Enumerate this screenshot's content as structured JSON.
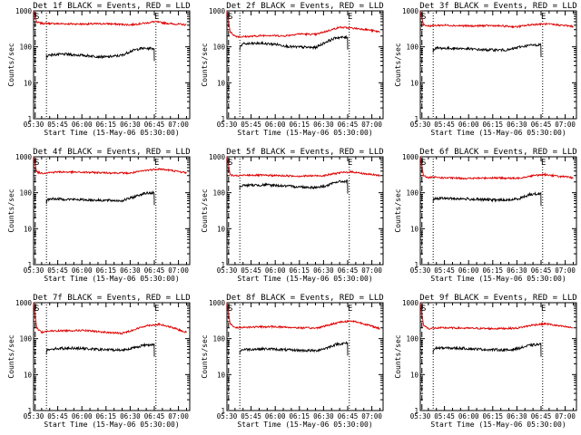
{
  "chart_data": [
    {
      "type": "line",
      "title": "Det 1f BLACK = Events, RED = LLD",
      "xlabel": "Start Time (15-May-06 05:30:00)",
      "ylabel": "Counts/sec",
      "scale": "log",
      "ylim": [
        1,
        1000
      ],
      "ytick_labels": [
        "1",
        "10",
        "100",
        "1000"
      ],
      "xtick_labels": [
        "05:30",
        "05:45",
        "06:00",
        "06:15",
        "06:30",
        "06:45",
        "07:00"
      ],
      "markers": {
        "start": "S",
        "end": "E"
      },
      "series": [
        {
          "name": "LLD",
          "color": "#e00000",
          "x": [
            0,
            2,
            5,
            8,
            15,
            30,
            45,
            60,
            70,
            75,
            85,
            95
          ],
          "y": [
            1000,
            480,
            450,
            450,
            440,
            430,
            440,
            410,
            460,
            500,
            440,
            410
          ]
        },
        {
          "name": "Events",
          "color": "#000000",
          "x": [
            8,
            10,
            20,
            30,
            45,
            55,
            60,
            66,
            75
          ],
          "y": [
            55,
            60,
            62,
            58,
            52,
            58,
            75,
            90,
            90
          ]
        }
      ]
    },
    {
      "type": "line",
      "title": "Det 2f BLACK = Events, RED = LLD",
      "xlabel": "Start Time (15-May-06 05:30:00)",
      "ylabel": "Counts/sec",
      "scale": "log",
      "ylim": [
        1,
        1000
      ],
      "ytick_labels": [
        "1",
        "10",
        "100",
        "1000"
      ],
      "xtick_labels": [
        "05:30",
        "05:45",
        "06:00",
        "06:15",
        "06:30",
        "06:45",
        "07:00"
      ],
      "markers": {
        "start": "S",
        "end": "E"
      },
      "series": [
        {
          "name": "LLD",
          "color": "#e00000",
          "x": [
            0,
            2,
            5,
            8,
            15,
            25,
            35,
            45,
            55,
            65,
            70,
            78,
            85,
            95
          ],
          "y": [
            1000,
            260,
            200,
            190,
            195,
            210,
            200,
            230,
            220,
            300,
            350,
            330,
            310,
            260
          ]
        },
        {
          "name": "Events",
          "color": "#000000",
          "x": [
            8,
            10,
            20,
            30,
            40,
            55,
            62,
            68,
            75
          ],
          "y": [
            100,
            120,
            125,
            118,
            100,
            95,
            140,
            180,
            185
          ]
        }
      ]
    },
    {
      "type": "line",
      "title": "Det 3f BLACK = Events, RED = LLD",
      "xlabel": "Start Time (15-May-06 05:30:00)",
      "ylabel": "Counts/sec",
      "scale": "log",
      "ylim": [
        1,
        1000
      ],
      "ytick_labels": [
        "1",
        "10",
        "100",
        "1000"
      ],
      "xtick_labels": [
        "05:30",
        "05:45",
        "06:00",
        "06:15",
        "06:30",
        "06:45",
        "07:00"
      ],
      "markers": {
        "start": "S",
        "end": "E"
      },
      "series": [
        {
          "name": "LLD",
          "color": "#e00000",
          "x": [
            0,
            2,
            5,
            8,
            15,
            30,
            45,
            60,
            70,
            78,
            85,
            95
          ],
          "y": [
            1000,
            420,
            380,
            390,
            400,
            380,
            390,
            360,
            420,
            430,
            410,
            370
          ]
        },
        {
          "name": "Events",
          "color": "#000000",
          "x": [
            8,
            10,
            25,
            40,
            55,
            62,
            68,
            75
          ],
          "y": [
            85,
            92,
            90,
            82,
            82,
            100,
            110,
            115
          ]
        }
      ]
    },
    {
      "type": "line",
      "title": "Det 4f BLACK = Events, RED = LLD",
      "xlabel": "Start Time (15-May-06 05:30:00)",
      "ylabel": "Counts/sec",
      "scale": "log",
      "ylim": [
        1,
        1000
      ],
      "ytick_labels": [
        "1",
        "10",
        "100",
        "1000"
      ],
      "xtick_labels": [
        "05:30",
        "05:45",
        "06:00",
        "06:15",
        "06:30",
        "06:45",
        "07:00"
      ],
      "markers": {
        "start": "S",
        "end": "E"
      },
      "series": [
        {
          "name": "LLD",
          "color": "#e00000",
          "x": [
            0,
            2,
            5,
            8,
            15,
            30,
            45,
            60,
            70,
            78,
            85,
            95
          ],
          "y": [
            1000,
            380,
            350,
            360,
            380,
            370,
            360,
            350,
            420,
            460,
            420,
            360
          ]
        },
        {
          "name": "Events",
          "color": "#000000",
          "x": [
            8,
            10,
            25,
            40,
            55,
            62,
            68,
            75
          ],
          "y": [
            60,
            68,
            65,
            62,
            60,
            75,
            95,
            100
          ]
        }
      ]
    },
    {
      "type": "line",
      "title": "Det 5f BLACK = Events, RED = LLD",
      "xlabel": "Start Time (15-May-06 05:30:00)",
      "ylabel": "Counts/sec",
      "scale": "log",
      "ylim": [
        1,
        1000
      ],
      "ytick_labels": [
        "1",
        "10",
        "100",
        "1000"
      ],
      "xtick_labels": [
        "05:30",
        "05:45",
        "06:00",
        "06:15",
        "06:30",
        "06:45",
        "07:00"
      ],
      "markers": {
        "start": "S",
        "end": "E"
      },
      "series": [
        {
          "name": "LLD",
          "color": "#e00000",
          "x": [
            0,
            2,
            5,
            8,
            15,
            30,
            45,
            60,
            70,
            78,
            85,
            95
          ],
          "y": [
            1000,
            320,
            290,
            300,
            310,
            300,
            290,
            300,
            360,
            380,
            340,
            300
          ]
        },
        {
          "name": "Events",
          "color": "#000000",
          "x": [
            8,
            10,
            25,
            40,
            55,
            62,
            68,
            75
          ],
          "y": [
            150,
            160,
            165,
            150,
            140,
            155,
            200,
            210
          ]
        }
      ]
    },
    {
      "type": "line",
      "title": "Det 6f BLACK = Events, RED = LLD",
      "xlabel": "Start Time (15-May-06 05:30:00)",
      "ylabel": "Counts/sec",
      "scale": "log",
      "ylim": [
        1,
        1000
      ],
      "ytick_labels": [
        "1",
        "10",
        "100",
        "1000"
      ],
      "xtick_labels": [
        "05:30",
        "05:45",
        "06:00",
        "06:15",
        "06:30",
        "06:45",
        "07:00"
      ],
      "markers": {
        "start": "S",
        "end": "E"
      },
      "series": [
        {
          "name": "LLD",
          "color": "#e00000",
          "x": [
            0,
            2,
            5,
            8,
            15,
            30,
            45,
            60,
            70,
            78,
            85,
            95
          ],
          "y": [
            1000,
            300,
            260,
            270,
            260,
            250,
            260,
            250,
            300,
            320,
            290,
            260
          ]
        },
        {
          "name": "Events",
          "color": "#000000",
          "x": [
            8,
            10,
            25,
            40,
            55,
            62,
            68,
            75
          ],
          "y": [
            65,
            70,
            68,
            64,
            62,
            70,
            90,
            95
          ]
        }
      ]
    },
    {
      "type": "line",
      "title": "Det 7f BLACK = Events, RED = LLD",
      "xlabel": "Start Time (15-May-06 05:30:00)",
      "ylabel": "Counts/sec",
      "scale": "log",
      "ylim": [
        1,
        1000
      ],
      "ytick_labels": [
        "1",
        "10",
        "100",
        "1000"
      ],
      "xtick_labels": [
        "05:30",
        "05:45",
        "06:00",
        "06:15",
        "06:30",
        "06:45",
        "07:00"
      ],
      "markers": {
        "start": "S",
        "end": "E"
      },
      "series": [
        {
          "name": "LLD",
          "color": "#e00000",
          "x": [
            0,
            2,
            5,
            8,
            15,
            30,
            45,
            55,
            62,
            70,
            78,
            85,
            95
          ],
          "y": [
            1000,
            200,
            150,
            160,
            165,
            170,
            150,
            140,
            175,
            230,
            250,
            210,
            150
          ]
        },
        {
          "name": "Events",
          "color": "#000000",
          "x": [
            8,
            10,
            25,
            40,
            55,
            62,
            68,
            75
          ],
          "y": [
            45,
            52,
            55,
            50,
            48,
            55,
            65,
            70
          ]
        }
      ]
    },
    {
      "type": "line",
      "title": "Det 8f BLACK = Events, RED = LLD",
      "xlabel": "Start Time (15-May-06 05:30:00)",
      "ylabel": "Counts/sec",
      "scale": "log",
      "ylim": [
        1,
        1000
      ],
      "ytick_labels": [
        "1",
        "10",
        "100",
        "1000"
      ],
      "xtick_labels": [
        "05:30",
        "05:45",
        "06:00",
        "06:15",
        "06:30",
        "06:45",
        "07:00"
      ],
      "markers": {
        "start": "S",
        "end": "E"
      },
      "series": [
        {
          "name": "LLD",
          "color": "#e00000",
          "x": [
            0,
            2,
            5,
            8,
            15,
            30,
            45,
            55,
            62,
            70,
            78,
            85,
            95
          ],
          "y": [
            1000,
            260,
            200,
            205,
            210,
            215,
            200,
            195,
            230,
            290,
            310,
            260,
            190
          ]
        },
        {
          "name": "Events",
          "color": "#000000",
          "x": [
            8,
            10,
            25,
            40,
            55,
            62,
            68,
            75
          ],
          "y": [
            45,
            50,
            52,
            48,
            46,
            55,
            70,
            75
          ]
        }
      ]
    },
    {
      "type": "line",
      "title": "Det 9f BLACK = Events, RED = LLD",
      "xlabel": "Start Time (15-May-06 05:30:00)",
      "ylabel": "Counts/sec",
      "scale": "log",
      "ylim": [
        1,
        1000
      ],
      "ytick_labels": [
        "1",
        "10",
        "100",
        "1000"
      ],
      "xtick_labels": [
        "05:30",
        "05:45",
        "06:00",
        "06:15",
        "06:30",
        "06:45",
        "07:00"
      ],
      "markers": {
        "start": "S",
        "end": "E"
      },
      "series": [
        {
          "name": "LLD",
          "color": "#e00000",
          "x": [
            0,
            2,
            5,
            8,
            15,
            30,
            45,
            60,
            70,
            78,
            85,
            95
          ],
          "y": [
            1000,
            240,
            190,
            195,
            200,
            195,
            190,
            195,
            240,
            260,
            230,
            200
          ]
        },
        {
          "name": "Events",
          "color": "#000000",
          "x": [
            8,
            10,
            25,
            40,
            55,
            62,
            68,
            75
          ],
          "y": [
            48,
            55,
            54,
            50,
            48,
            55,
            65,
            70
          ]
        }
      ]
    }
  ]
}
